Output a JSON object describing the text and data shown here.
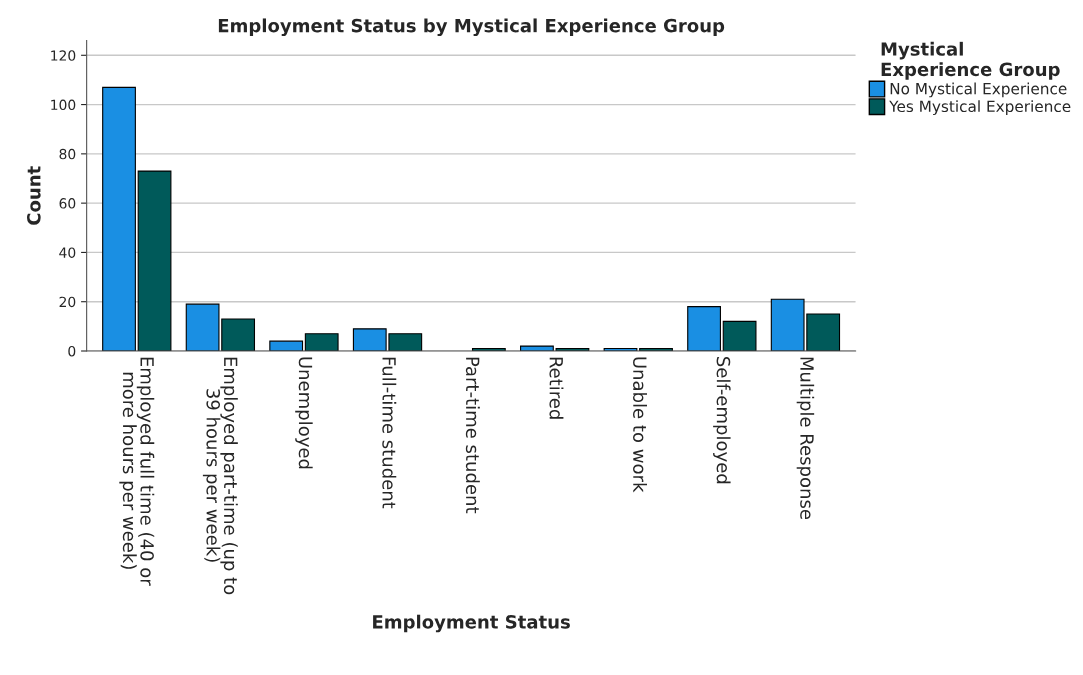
{
  "chart_data": {
    "type": "bar",
    "title": "Employment Status by Mystical Experience Group",
    "xlabel": "Employment Status",
    "ylabel": "Count",
    "legend_title": "Mystical\nExperience Group",
    "categories": [
      "Employed full time (40 or\nmore hours per week)",
      "Employed part-time (up to\n39 hours per week)",
      "Unemployed",
      "Full-time student",
      "Part-time student",
      "Retired",
      "Unable to work",
      "Self-employed",
      "Multiple Response"
    ],
    "series": [
      {
        "name": "No Mystical Experience",
        "color": "#1a8fe3",
        "values": [
          107,
          19,
          4,
          9,
          null,
          2,
          1,
          18,
          21
        ]
      },
      {
        "name": "Yes Mystical Experience",
        "color": "#005a5a",
        "values": [
          73,
          13,
          7,
          7,
          1,
          1,
          1,
          12,
          15
        ]
      }
    ],
    "ylim": [
      0,
      126
    ],
    "yticks": [
      0,
      20,
      40,
      60,
      80,
      100,
      120
    ],
    "grid": "y",
    "legend": "top right"
  }
}
